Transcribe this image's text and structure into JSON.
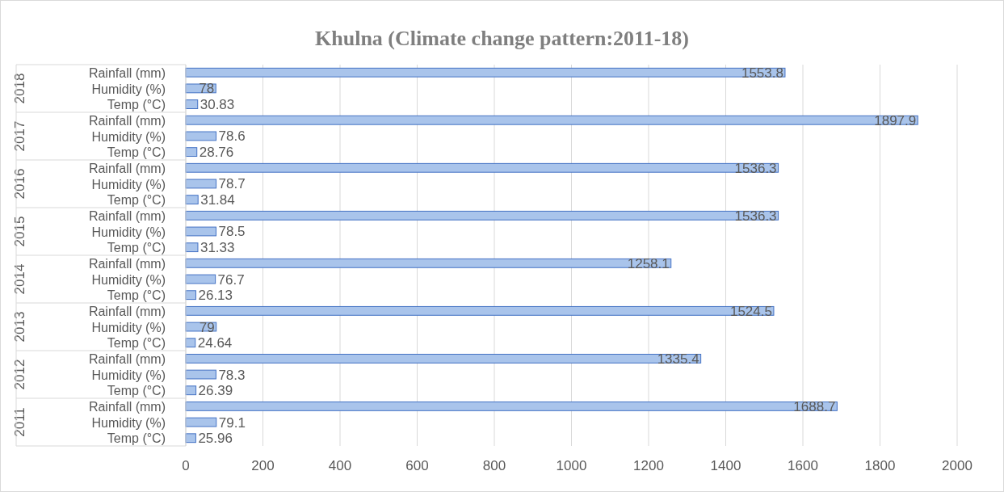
{
  "chart_data": {
    "type": "bar",
    "orientation": "horizontal",
    "title": "Khulna (Climate change pattern:2011-18)",
    "categories": [
      "Rainfall (mm)",
      "Humidity (%)",
      "Temp (°C)",
      "Rainfall (mm)",
      "Humidity (%)",
      "Temp (°C)",
      "Rainfall (mm)",
      "Humidity (%)",
      "Temp (°C)",
      "Rainfall (mm)",
      "Humidity (%)",
      "Temp (°C)",
      "Rainfall (mm)",
      "Humidity (%)",
      "Temp (°C)",
      "Rainfall (mm)",
      "Humidity (%)",
      "Temp (°C)",
      "Rainfall (mm)",
      "Humidity (%)",
      "Temp (°C)",
      "Rainfall (mm)",
      "Humidity (%)",
      "Temp (°C)"
    ],
    "values": [
      1553.8,
      78,
      30.83,
      1897.9,
      78.6,
      28.76,
      1536.3,
      78.7,
      31.84,
      1536.3,
      78.5,
      31.33,
      1258.1,
      76.7,
      26.13,
      1524.5,
      79,
      24.64,
      1335.4,
      78.3,
      26.39,
      1688.7,
      79.1,
      25.96
    ],
    "color": "#a9c4eb",
    "annotations": [
      "2018",
      "2017",
      "2016",
      "2015",
      "2014",
      "2013",
      "2012",
      "2011"
    ],
    "xlim": [
      0,
      2000
    ],
    "xticks": [
      0,
      200,
      400,
      600,
      800,
      1000,
      1200,
      1400,
      1600,
      1800,
      2000
    ],
    "grid": "x",
    "data_labels": true
  }
}
